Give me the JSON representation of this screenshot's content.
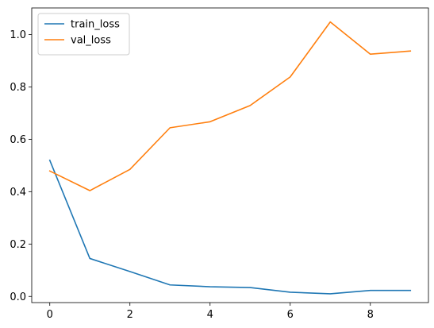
{
  "chart_data": {
    "type": "line",
    "title": "",
    "xlabel": "",
    "ylabel": "",
    "x": [
      0,
      1,
      2,
      3,
      4,
      5,
      6,
      7,
      8,
      9
    ],
    "xlim": [
      -0.45,
      9.45
    ],
    "ylim": [
      -0.0235,
      1.1015
    ],
    "xticks": [
      0,
      2,
      4,
      6,
      8
    ],
    "xtick_labels": [
      "0",
      "2",
      "4",
      "6",
      "8"
    ],
    "yticks": [
      0.0,
      0.2,
      0.4,
      0.6,
      0.8,
      1.0
    ],
    "ytick_labels": [
      "0.0",
      "0.2",
      "0.4",
      "0.6",
      "0.8",
      "1.0"
    ],
    "grid": false,
    "legend_position": "top-left",
    "series": [
      {
        "name": "train_loss",
        "color": "#1f77b4",
        "values": [
          0.52,
          0.145,
          0.095,
          0.044,
          0.037,
          0.034,
          0.016,
          0.01,
          0.023,
          0.023
        ]
      },
      {
        "name": "val_loss",
        "color": "#ff7f0e",
        "values": [
          0.479,
          0.404,
          0.485,
          0.644,
          0.667,
          0.729,
          0.838,
          1.048,
          0.925,
          0.937
        ]
      }
    ]
  }
}
